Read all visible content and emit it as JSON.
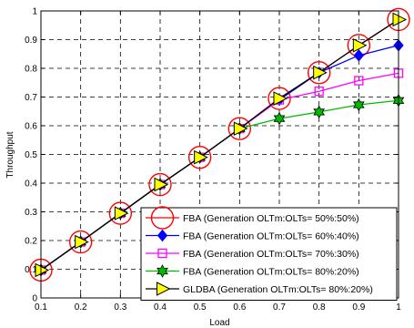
{
  "chart_data": {
    "type": "line",
    "xlabel": "Load",
    "ylabel": "Throughput",
    "xlim": [
      0.1,
      1
    ],
    "ylim": [
      0,
      1
    ],
    "xticks": [
      "0.1",
      "0.2",
      "0.3",
      "0.4",
      "0.5",
      "0.6",
      "0.7",
      "0.8",
      "0.9",
      "1"
    ],
    "yticks": [
      "0",
      "0.1",
      "0.2",
      "0.3",
      "0.4",
      "0.5",
      "0.6",
      "0.7",
      "0.8",
      "0.9",
      "1"
    ],
    "grid": true,
    "legend_position": "bottom-right",
    "x": [
      0.1,
      0.2,
      0.3,
      0.4,
      0.5,
      0.6,
      0.7,
      0.8,
      0.9,
      1.0
    ],
    "series": [
      {
        "name": "FBA (Generation OLTm:OLTs= 50%:50%)",
        "color": "#ff0000",
        "marker": "circle",
        "values": [
          0.097,
          0.195,
          0.295,
          0.395,
          0.49,
          0.59,
          0.695,
          0.785,
          0.88,
          0.97
        ]
      },
      {
        "name": "FBA (Generation OLTm:OLTs= 60%:40%)",
        "color": "#0000ff",
        "marker": "diamond",
        "values": [
          0.097,
          0.195,
          0.295,
          0.395,
          0.49,
          0.59,
          0.69,
          0.785,
          0.845,
          0.88
        ]
      },
      {
        "name": "FBA (Generation OLTm:OLTs= 70%:30%)",
        "color": "#ff00ff",
        "marker": "square",
        "values": [
          0.097,
          0.195,
          0.295,
          0.395,
          0.49,
          0.59,
          0.69,
          0.72,
          0.757,
          0.783
        ]
      },
      {
        "name": "FBA (Generation OLTm:OLTs= 80%:20%)",
        "color": "#00bb00",
        "marker": "hexagram",
        "values": [
          0.097,
          0.195,
          0.295,
          0.395,
          0.49,
          0.59,
          0.625,
          0.648,
          0.673,
          0.688
        ]
      },
      {
        "name": "GLDBA (Generation OLTm:OLTs= 80%:20%)",
        "color": "#000000",
        "marker": "triangle-right",
        "marker_fill": "#ffff00",
        "values": [
          0.097,
          0.195,
          0.295,
          0.395,
          0.49,
          0.59,
          0.695,
          0.785,
          0.88,
          0.97
        ]
      }
    ]
  }
}
